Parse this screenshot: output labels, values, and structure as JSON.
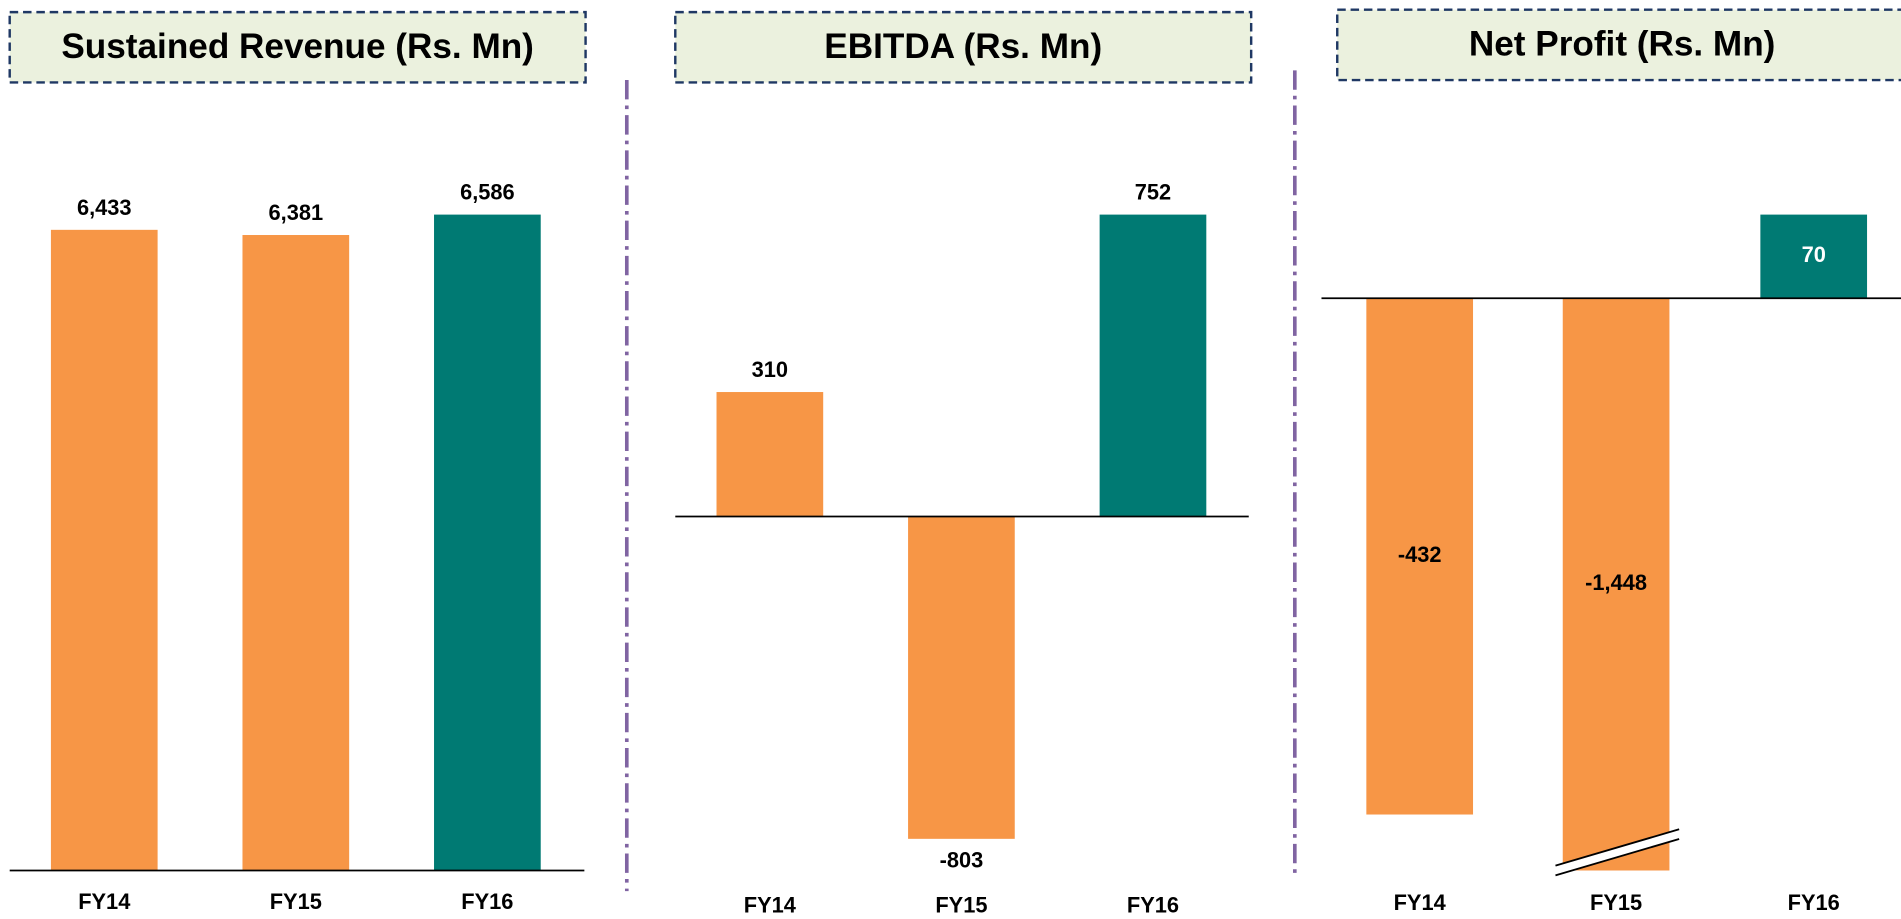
{
  "chart_data": [
    {
      "type": "bar",
      "title": "Sustained Revenue (Rs. Mn)",
      "categories": [
        "FY14",
        "FY15",
        "FY16"
      ],
      "values": [
        6433,
        6381,
        6586
      ],
      "value_labels": [
        "6,433",
        "6,381",
        "6,586"
      ],
      "colors": [
        "#F79646",
        "#F79646",
        "#007A73"
      ]
    },
    {
      "type": "bar",
      "title": "EBITDA (Rs. Mn)",
      "categories": [
        "FY14",
        "FY15",
        "FY16"
      ],
      "values": [
        310,
        -803,
        752
      ],
      "value_labels": [
        "310",
        "-803",
        "752"
      ],
      "colors": [
        "#F79646",
        "#F79646",
        "#007A73"
      ]
    },
    {
      "type": "bar",
      "title": "Net Profit (Rs. Mn)",
      "categories": [
        "FY14",
        "FY15",
        "FY16"
      ],
      "values": [
        -432,
        -1448,
        70
      ],
      "value_labels": [
        "-432",
        "-1,448",
        "70"
      ],
      "colors": [
        "#F79646",
        "#F79646",
        "#007A73"
      ]
    }
  ]
}
